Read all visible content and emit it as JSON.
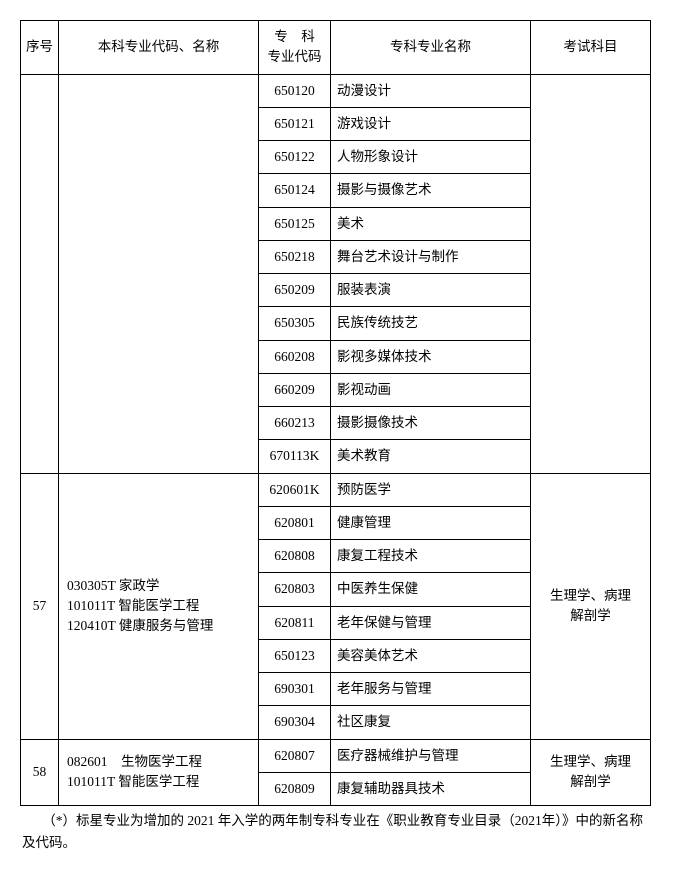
{
  "header": {
    "col1": "序号",
    "col2": "本科专业代码、名称",
    "col3_line1": "专　科",
    "col3_line2": "专业代码",
    "col4": "专科专业名称",
    "col5": "考试科目"
  },
  "group_top": {
    "rows": [
      {
        "code": "650120",
        "name": "动漫设计"
      },
      {
        "code": "650121",
        "name": "游戏设计"
      },
      {
        "code": "650122",
        "name": "人物形象设计"
      },
      {
        "code": "650124",
        "name": "摄影与摄像艺术"
      },
      {
        "code": "650125",
        "name": "美术"
      },
      {
        "code": "650218",
        "name": "舞台艺术设计与制作"
      },
      {
        "code": "650209",
        "name": "服装表演"
      },
      {
        "code": "650305",
        "name": "民族传统技艺"
      },
      {
        "code": "660208",
        "name": "影视多媒体技术"
      },
      {
        "code": "660209",
        "name": "影视动画"
      },
      {
        "code": "660213",
        "name": "摄影摄像技术"
      },
      {
        "code": "670113K",
        "name": "美术教育"
      }
    ]
  },
  "group57": {
    "seq": "57",
    "undergrad_line1": "030305T 家政学",
    "undergrad_line2": "101011T 智能医学工程",
    "undergrad_line3": "120410T 健康服务与管理",
    "exam_line1": "生理学、病理",
    "exam_line2": "解剖学",
    "rows": [
      {
        "code": "620601K",
        "name": "预防医学"
      },
      {
        "code": "620801",
        "name": "健康管理"
      },
      {
        "code": "620808",
        "name": "康复工程技术"
      },
      {
        "code": "620803",
        "name": "中医养生保健"
      },
      {
        "code": "620811",
        "name": "老年保健与管理"
      },
      {
        "code": "650123",
        "name": "美容美体艺术"
      },
      {
        "code": "690301",
        "name": "老年服务与管理"
      },
      {
        "code": "690304",
        "name": "社区康复"
      }
    ]
  },
  "group58": {
    "seq": "58",
    "undergrad_line1": "082601　生物医学工程",
    "undergrad_line2": "101011T 智能医学工程",
    "exam_line1": "生理学、病理",
    "exam_line2": "解剖学",
    "rows": [
      {
        "code": "620807",
        "name": "医疗器械维护与管理"
      },
      {
        "code": "620809",
        "name": "康复辅助器具技术"
      }
    ]
  },
  "footnote": "　　（*）标星专业为增加的 2021 年入学的两年制专科专业在《职业教育专业目录（2021年）》中的新名称及代码。"
}
